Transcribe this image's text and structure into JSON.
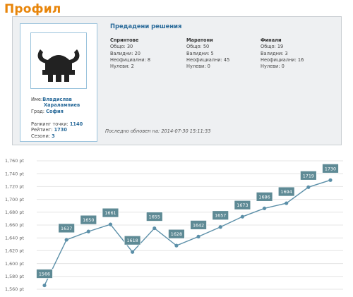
{
  "page": {
    "title": "Профил"
  },
  "profile": {
    "name_label": "Име:",
    "name_first": "Владислав",
    "name_last": "Харалампиев",
    "city_label": "Град:",
    "city": "София",
    "rank_points_label": "Ранкинг точки:",
    "rank_points": "1140",
    "rating_label": "Рейтинг:",
    "rating": "1730",
    "seasons_label": "Сезони:",
    "seasons": "3",
    "avatar_icon": "viking-helmet-icon"
  },
  "stats": {
    "title": "Предадени решения",
    "columns": [
      {
        "heading": "Спринтове",
        "lines": [
          "Общо: 30",
          "Валидни: 20",
          "Неофициални: 8",
          "Нулеви: 2"
        ]
      },
      {
        "heading": "Маратони",
        "lines": [
          "Общо: 50",
          "Валидни: 5",
          "Неофициални: 45",
          "Нулеви: 0"
        ]
      },
      {
        "heading": "Финали",
        "lines": [
          "Общо: 19",
          "Валидни: 3",
          "Неофициални: 16",
          "Нулеви: 0"
        ]
      }
    ],
    "updated": "Последно обновен на: 2014-07-30 15:11:33"
  },
  "colors": {
    "accent": "#e8850a",
    "link": "#2a6b9a",
    "line": "#5b8fa8",
    "label_bg": "#5e8a95"
  },
  "chart_data": {
    "type": "line",
    "y_tick_labels": [
      "1,560 pt",
      "1,580 pt",
      "1,600 pt",
      "1,620 pt",
      "1,640 pt",
      "1,660 pt",
      "1,680 pt",
      "1,700 pt",
      "1,720 pt",
      "1,740 pt",
      "1,760 pt"
    ],
    "ylim": [
      1560,
      1760
    ],
    "grid": true,
    "series": [
      {
        "values": [
          1566,
          1637,
          1650,
          1661,
          1618,
          1655,
          1628,
          1642,
          1657,
          1673,
          1686,
          1694,
          1719,
          1730
        ]
      }
    ]
  }
}
